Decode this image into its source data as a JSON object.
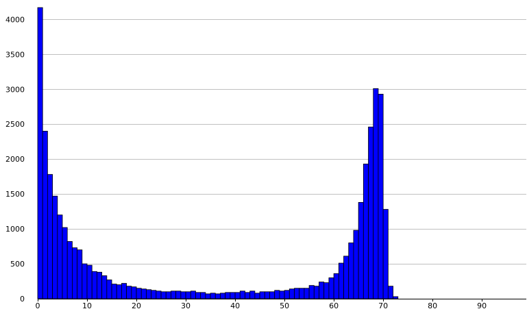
{
  "chart_data": {
    "type": "bar",
    "title": "",
    "xlabel": "",
    "ylabel": "",
    "x_start": 0,
    "bin_width": 1,
    "xlim": [
      0,
      99
    ],
    "ylim": [
      0,
      4200
    ],
    "x_ticks": [
      0,
      10,
      20,
      30,
      40,
      50,
      60,
      70,
      80,
      90
    ],
    "y_ticks": [
      0,
      500,
      1000,
      1500,
      2000,
      2500,
      3000,
      3500,
      4000
    ],
    "grid": {
      "horizontal": true,
      "vertical": false
    },
    "legend": "none",
    "colors": {
      "bar_fill": "#0000ff",
      "bar_stroke": "#000000",
      "grid": "#c0c0c0",
      "axis": "#000000"
    },
    "values": [
      4170,
      2400,
      1780,
      1470,
      1200,
      1020,
      820,
      730,
      700,
      500,
      480,
      390,
      380,
      330,
      270,
      210,
      200,
      220,
      180,
      170,
      150,
      140,
      130,
      120,
      110,
      100,
      100,
      110,
      110,
      100,
      100,
      110,
      90,
      90,
      70,
      80,
      70,
      80,
      90,
      90,
      90,
      110,
      90,
      110,
      80,
      100,
      100,
      100,
      120,
      110,
      120,
      140,
      150,
      150,
      150,
      190,
      180,
      240,
      230,
      300,
      360,
      510,
      610,
      800,
      980,
      1380,
      1930,
      2460,
      3010,
      2930,
      1280,
      180,
      30
    ]
  }
}
